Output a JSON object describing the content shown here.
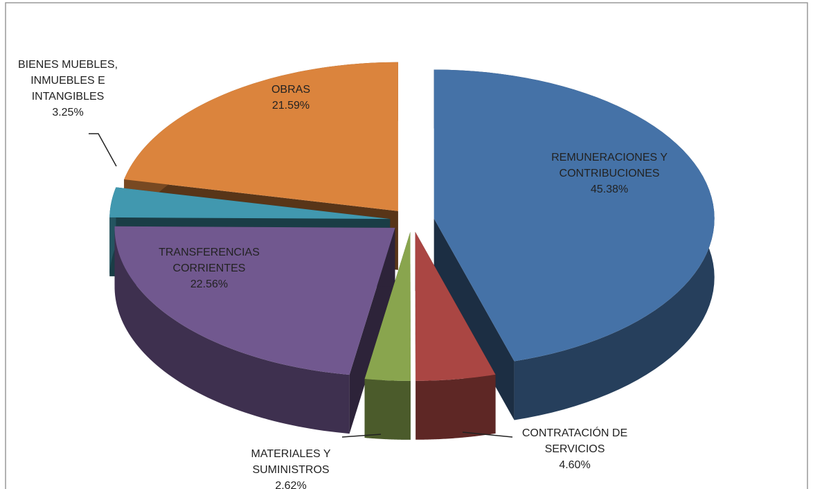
{
  "chart_data": {
    "type": "pie",
    "categories": [
      "REMUNERACIONES Y CONTRIBUCIONES",
      "CONTRATACIÓN DE SERVICIOS",
      "MATERIALES Y SUMINISTROS",
      "TRANSFERENCIAS CORRIENTES",
      "BIENES MUEBLES, INMUEBLES E INTANGIBLES",
      "OBRAS"
    ],
    "values": [
      45.38,
      4.6,
      2.62,
      22.56,
      3.25,
      21.59
    ],
    "value_labels": [
      "45.38%",
      "4.60%",
      "2.62%",
      "22.56%",
      "3.25%",
      "21.59%"
    ],
    "colors": [
      "#4572a7",
      "#aa4643",
      "#89a54e",
      "#71588f",
      "#4198af",
      "#db843d"
    ]
  }
}
